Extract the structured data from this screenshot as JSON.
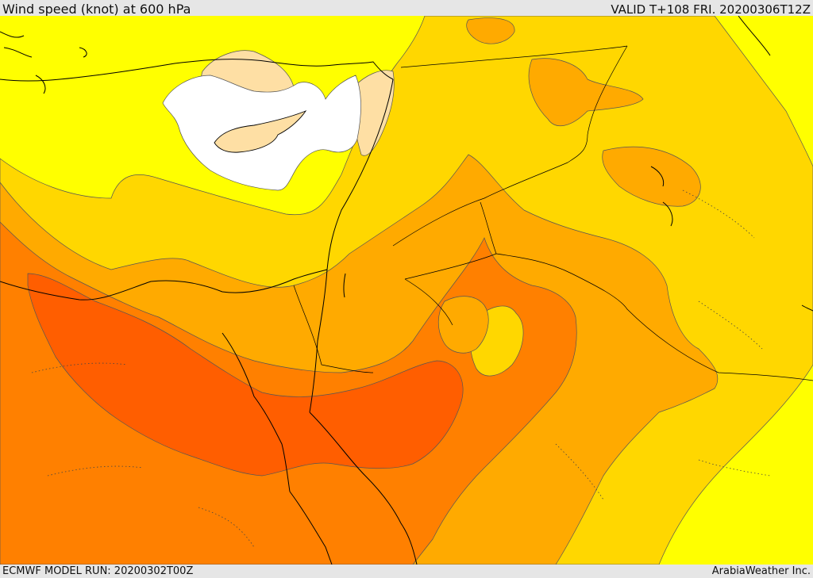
{
  "header": {
    "title": "Wind speed (knot) at 600 hPa",
    "valid": "VALID T+108 FRI. 20200306T12Z"
  },
  "footer": {
    "model_run": "ECMWF MODEL RUN: 20200302T00Z",
    "credit": "ArabiaWeather Inc."
  },
  "colors": {
    "band_white": "#ffffff",
    "band_light": "#fedfa4",
    "band_yellow": "#ffff00",
    "band_gold": "#ffd700",
    "band_amber": "#ffaa00",
    "band_orange": "#ff8000",
    "band_red_orange": "#ff5e00",
    "coast": "#000000",
    "contour": "#555555"
  }
}
